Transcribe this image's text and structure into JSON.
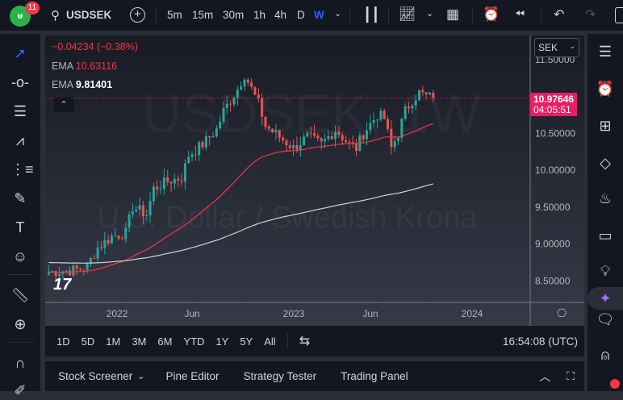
{
  "topbar": {
    "notifications": "11",
    "symbol": "USDSEK",
    "intervals": [
      "5m",
      "15m",
      "30m",
      "1h",
      "4h",
      "D",
      "W"
    ],
    "active_interval": "W"
  },
  "legend": {
    "change": "−0.04234 (−0.38%)",
    "ema1_label": "EMA",
    "ema1_value": "10.63116",
    "ema2_label": "EMA",
    "ema2_value": "9.81401"
  },
  "watermark": {
    "line1": "USDSEK, 1W",
    "line2": "U.S. Dollar / Swedish Krona"
  },
  "price_axis": {
    "currency": "SEK",
    "ticks": [
      "11.50000",
      "10.50000",
      "10.00000",
      "9.50000",
      "9.00000",
      "8.50000"
    ],
    "last_price": "10.97646",
    "countdown": "04:05:51"
  },
  "time_axis": {
    "labels": [
      "2022",
      "Jun",
      "2023",
      "Jun",
      "2024"
    ]
  },
  "timebar": {
    "ranges": [
      "1D",
      "5D",
      "1M",
      "3M",
      "6M",
      "YTD",
      "1Y",
      "5Y",
      "All"
    ],
    "clock": "16:54:08 (UTC)"
  },
  "bottom_panel": {
    "tabs": [
      "Stock Screener",
      "Pine Editor",
      "Strategy Tester",
      "Trading Panel"
    ]
  },
  "colors": {
    "up": "#26a69a",
    "down": "#ef5350",
    "ema1": "#f23645",
    "ema2": "#d1d4dc",
    "price_label": "#e91e63",
    "accent": "#2962ff"
  },
  "chart_data": {
    "type": "candlestick",
    "ylim": [
      8.25,
      11.6
    ],
    "anchors": [
      [
        0,
        8.62
      ],
      [
        8,
        8.65
      ],
      [
        11,
        8.7
      ],
      [
        14,
        8.95
      ],
      [
        18,
        9.1
      ],
      [
        22,
        9.15
      ],
      [
        24,
        9.5
      ],
      [
        28,
        9.4
      ],
      [
        30,
        9.75
      ],
      [
        34,
        9.85
      ],
      [
        38,
        9.9
      ],
      [
        40,
        10.2
      ],
      [
        44,
        10.35
      ],
      [
        48,
        10.55
      ],
      [
        50,
        10.8
      ],
      [
        54,
        11.1
      ],
      [
        56,
        11.3
      ],
      [
        58,
        11.1
      ],
      [
        60,
        10.9
      ],
      [
        62,
        10.6
      ],
      [
        66,
        10.45
      ],
      [
        70,
        10.3
      ],
      [
        74,
        10.45
      ],
      [
        78,
        10.35
      ],
      [
        82,
        10.55
      ],
      [
        86,
        10.35
      ],
      [
        88,
        10.3
      ],
      [
        90,
        10.5
      ],
      [
        94,
        10.75
      ],
      [
        96,
        10.7
      ],
      [
        98,
        10.3
      ],
      [
        100,
        10.5
      ],
      [
        102,
        10.8
      ],
      [
        104,
        10.95
      ],
      [
        106,
        11.05
      ],
      [
        108,
        11.0
      ],
      [
        110,
        10.98
      ]
    ],
    "ema_fast_end": 10.63116,
    "ema_slow_end": 9.81401,
    "last": 10.97646
  }
}
